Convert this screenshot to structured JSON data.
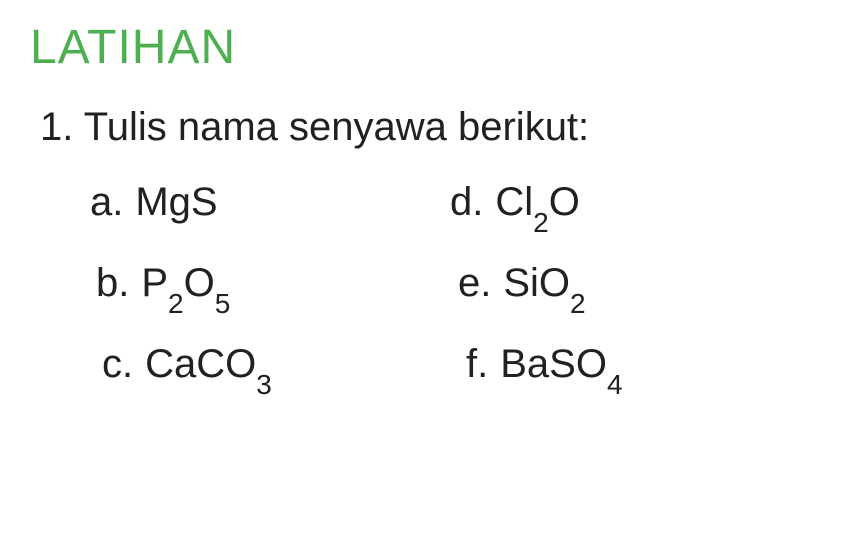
{
  "title": {
    "text": "LATIHAN",
    "color": "#4caf50",
    "fontsize": 48
  },
  "question": {
    "number": "1.",
    "text": "Tulis nama senyawa berikut:",
    "color": "#202124",
    "fontsize": 40
  },
  "items": {
    "color": "#202124",
    "fontsize": 40,
    "sub_fontsize": 28,
    "rows": [
      {
        "left": {
          "label": "a.",
          "formula_parts": [
            {
              "t": "MgS",
              "sub": false
            }
          ]
        },
        "right": {
          "label": "d.",
          "formula_parts": [
            {
              "t": "Cl",
              "sub": false
            },
            {
              "t": "2",
              "sub": true
            },
            {
              "t": "O",
              "sub": false
            }
          ]
        }
      },
      {
        "left": {
          "label": "b.",
          "formula_parts": [
            {
              "t": "P",
              "sub": false
            },
            {
              "t": "2",
              "sub": true
            },
            {
              "t": "O",
              "sub": false
            },
            {
              "t": "5",
              "sub": true
            }
          ]
        },
        "right": {
          "label": "e.",
          "formula_parts": [
            {
              "t": "SiO",
              "sub": false
            },
            {
              "t": "2",
              "sub": true
            }
          ]
        }
      },
      {
        "left": {
          "label": "c.",
          "formula_parts": [
            {
              "t": "CaCO",
              "sub": false
            },
            {
              "t": "3",
              "sub": true
            }
          ]
        },
        "right": {
          "label": "f.",
          "formula_parts": [
            {
              "t": "BaSO",
              "sub": false
            },
            {
              "t": "4",
              "sub": true
            }
          ]
        }
      }
    ]
  }
}
